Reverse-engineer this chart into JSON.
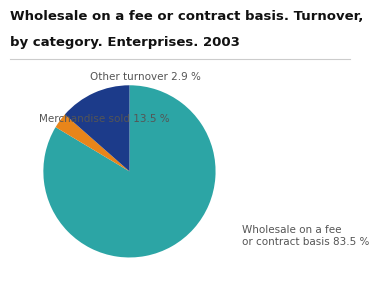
{
  "title_line1": "Wholesale on a fee or contract basis. Turnover,",
  "title_line2": "by category. Enterprises. 2003",
  "slices": [
    83.5,
    2.9,
    13.5
  ],
  "colors": [
    "#2ca5a5",
    "#e8851a",
    "#1c3b8a"
  ],
  "label_wholesale": "Wholesale on a fee\nor contract basis 83.5 %",
  "label_other": "Other turnover 2.9 %",
  "label_merch": "Merchandise sold 13.5 %",
  "background_color": "#ffffff",
  "title_fontsize": 9.5,
  "label_fontsize": 7.5,
  "title_color": "#111111",
  "label_color": "#555555"
}
